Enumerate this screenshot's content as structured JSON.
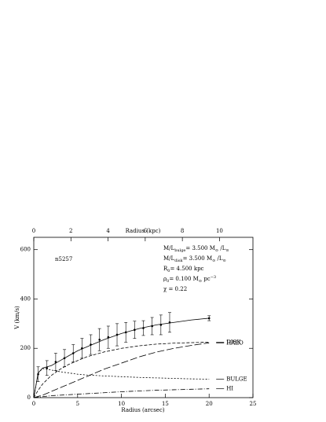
{
  "chart_data": {
    "type": "line",
    "xlabel": "Radius (arcsec)",
    "x2label": "Radius (kpc)",
    "ylabel": "V (km/s)",
    "xlim": [
      0,
      25
    ],
    "xticks": [
      0,
      5,
      10,
      15,
      20,
      25
    ],
    "x2lim": [
      0,
      11.8
    ],
    "x2ticks": [
      0,
      2,
      4,
      6,
      8,
      10
    ],
    "ylim": [
      0,
      650
    ],
    "yticks": [
      0,
      200,
      400,
      600
    ],
    "galaxy": "n5257",
    "params": {
      "ml_bulge": [
        "M/L",
        "bulge",
        "=  3.500  M",
        "⊙",
        " /L",
        "⊙"
      ],
      "ml_disk": [
        "M/L",
        "disk",
        "=  3.500  M",
        "⊙",
        " /L",
        "⊙"
      ],
      "r0": [
        "R",
        "0",
        "=   4.500  kpc"
      ],
      "rho0": [
        "ρ",
        "0",
        "=   0.100  M",
        "⊙",
        "  pc",
        "−3"
      ],
      "chi": "χ   =   0.22"
    },
    "x": [
      0,
      0.5,
      1,
      2,
      3,
      4,
      5,
      6,
      8,
      10,
      12,
      14,
      16,
      18,
      20
    ],
    "series": [
      {
        "style": "solid",
        "values": [
          0,
          100,
          120,
          130,
          150,
          170,
          190,
          205,
          235,
          260,
          280,
          295,
          305,
          315,
          322
        ]
      },
      {
        "name": "DISK",
        "style": "dashed",
        "values": [
          0,
          30,
          55,
          90,
          115,
          135,
          150,
          165,
          185,
          200,
          210,
          217,
          221,
          223,
          225
        ]
      },
      {
        "name": "HALO",
        "style": "long-dashed",
        "values": [
          0,
          5,
          10,
          25,
          40,
          55,
          70,
          85,
          115,
          140,
          165,
          185,
          200,
          212,
          222
        ]
      },
      {
        "name": "BULGE",
        "style": "dash-dot",
        "values": [
          0,
          100,
          118,
          112,
          105,
          100,
          95,
          92,
          88,
          85,
          82,
          80,
          78,
          76,
          75
        ]
      },
      {
        "name": "HI",
        "style": "dotted-dash",
        "values": [
          0,
          2,
          4,
          8,
          10,
          12,
          14,
          16,
          20,
          24,
          27,
          30,
          32,
          34,
          36
        ]
      }
    ],
    "observations": {
      "x": [
        0.5,
        1.5,
        2.5,
        3.5,
        4.5,
        5.5,
        6.5,
        7.5,
        8.5,
        9.5,
        10.5,
        11.5,
        12.5,
        13.5,
        14.5,
        15.5,
        20
      ],
      "values": [
        95,
        120,
        145,
        160,
        180,
        200,
        215,
        235,
        245,
        255,
        265,
        275,
        282,
        290,
        295,
        305,
        322
      ],
      "errors": [
        30,
        30,
        35,
        35,
        35,
        40,
        40,
        45,
        45,
        45,
        40,
        35,
        30,
        35,
        40,
        40,
        10
      ]
    }
  }
}
